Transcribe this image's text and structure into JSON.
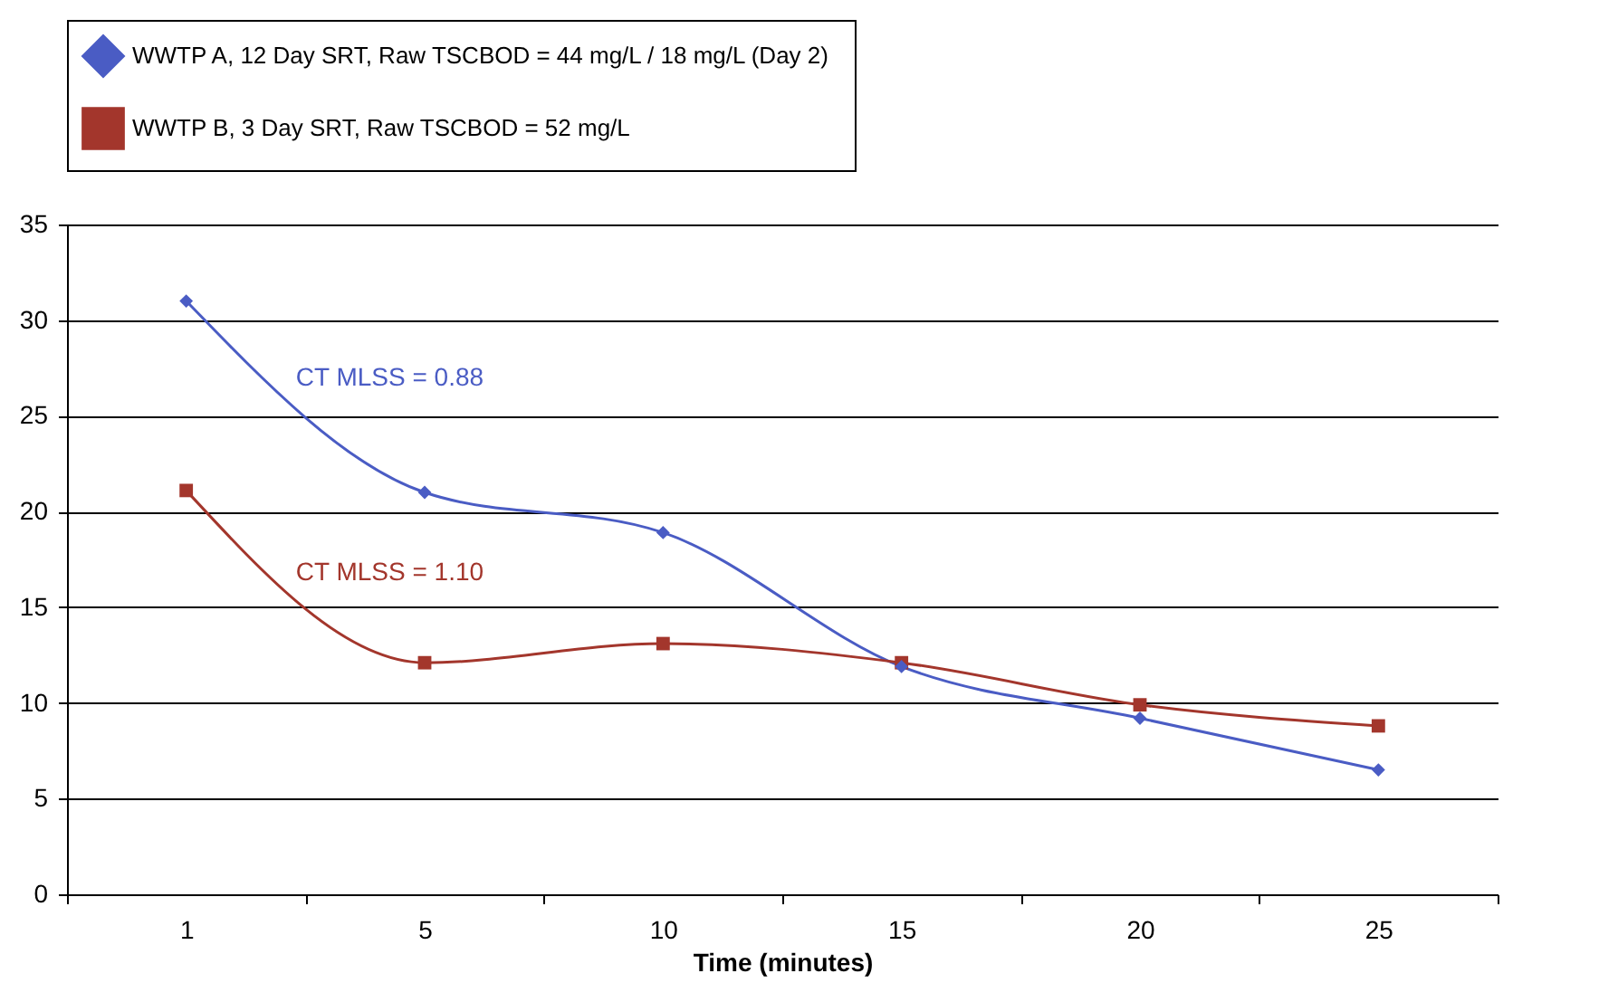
{
  "chart_data": {
    "type": "line",
    "xlabel": "Time (minutes)",
    "categories": [
      "1",
      "5",
      "10",
      "15",
      "20",
      "25"
    ],
    "series": [
      {
        "name": "WWTP A, 12 Day SRT, Raw  TSCBOD = 44 mg/L / 18 mg/L (Day 2)",
        "color": "#4a5cc4",
        "marker": "diamond",
        "values": [
          31,
          21,
          18.9,
          11.9,
          9.2,
          6.5
        ]
      },
      {
        "name": "WWTP B, 3 Day SRT, Raw  TSCBOD = 52 mg/L",
        "color": "#a3362c",
        "marker": "square",
        "values": [
          21.1,
          12.1,
          13.1,
          12.1,
          9.9,
          8.8
        ]
      }
    ],
    "annotations": [
      "CT MLSS = 0.88",
      "CT MLSS = 1.10"
    ],
    "ylim": [
      0,
      35
    ],
    "yticks": [
      0,
      5,
      10,
      15,
      20,
      25,
      30,
      35
    ],
    "grid": "y",
    "legend": "top"
  }
}
